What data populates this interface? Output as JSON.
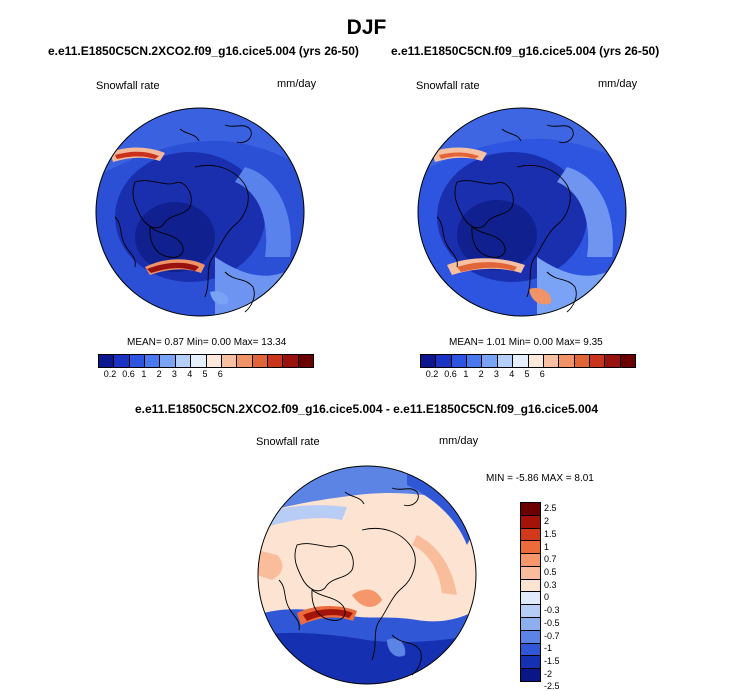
{
  "page_title": "DJF",
  "panels": [
    {
      "title": "e.e11.E1850C5CN.2XCO2.f09_g16.cice5.004 (yrs 26-50)",
      "variable": "Snowfall rate",
      "units": "mm/day",
      "stats": {
        "mean_label": "MEAN=",
        "mean": "0.87",
        "min_label": "Min=",
        "min": "0.00",
        "max_label": "Max=",
        "max": "13.34"
      }
    },
    {
      "title": "e.e11.E1850C5CN.f09_g16.cice5.004 (yrs 26-50)",
      "variable": "Snowfall rate",
      "units": "mm/day",
      "stats": {
        "mean_label": "MEAN=",
        "mean": "1.01",
        "min_label": "Min=",
        "min": "0.00",
        "max_label": "Max=",
        "max": "9.35"
      }
    }
  ],
  "diff_panel": {
    "title": "e.e11.E1850C5CN.2XCO2.f09_g16.cice5.004 - e.e11.E1850C5CN.f09_g16.cice5.004",
    "variable": "Snowfall rate",
    "units": "mm/day",
    "minmax": {
      "min_label": "MIN =",
      "min": "-5.86",
      "max_label": "MAX =",
      "max": "8.01"
    }
  },
  "colorbar_abs": {
    "colors": [
      "#0b168f",
      "#1a33c2",
      "#2e55df",
      "#4a78ee",
      "#7ba3f5",
      "#b4cff9",
      "#e4eefc",
      "#fde8dc",
      "#f8c0a2",
      "#f09468",
      "#e2653a",
      "#c9351c",
      "#99120e",
      "#6a0000"
    ],
    "tick_labels": [
      "0.2",
      "0.6",
      "1",
      "2",
      "3",
      "4",
      "5",
      "6"
    ]
  },
  "colorbar_diff": {
    "colors": [
      "#6a0000",
      "#a31309",
      "#d2391b",
      "#ec6a3b",
      "#f5976a",
      "#f9bd9c",
      "#fde3d1",
      "#e0eafb",
      "#b8cdf6",
      "#8daeef",
      "#5b84e5",
      "#3058d6",
      "#1530b0",
      "#0a1685"
    ],
    "tick_labels": [
      "2.5",
      "2",
      "1.5",
      "1",
      "0.7",
      "0.5",
      "0.3",
      "0",
      "-0.3",
      "-0.5",
      "-0.7",
      "-1",
      "-1.5",
      "-2",
      "-2.5"
    ]
  },
  "colors": {
    "ocean_deep": "#1327a8",
    "mid_blue": "#3457d9",
    "light_blue": "#7fa2f2",
    "pale": "#f9ddcf",
    "red": "#c9311c"
  }
}
